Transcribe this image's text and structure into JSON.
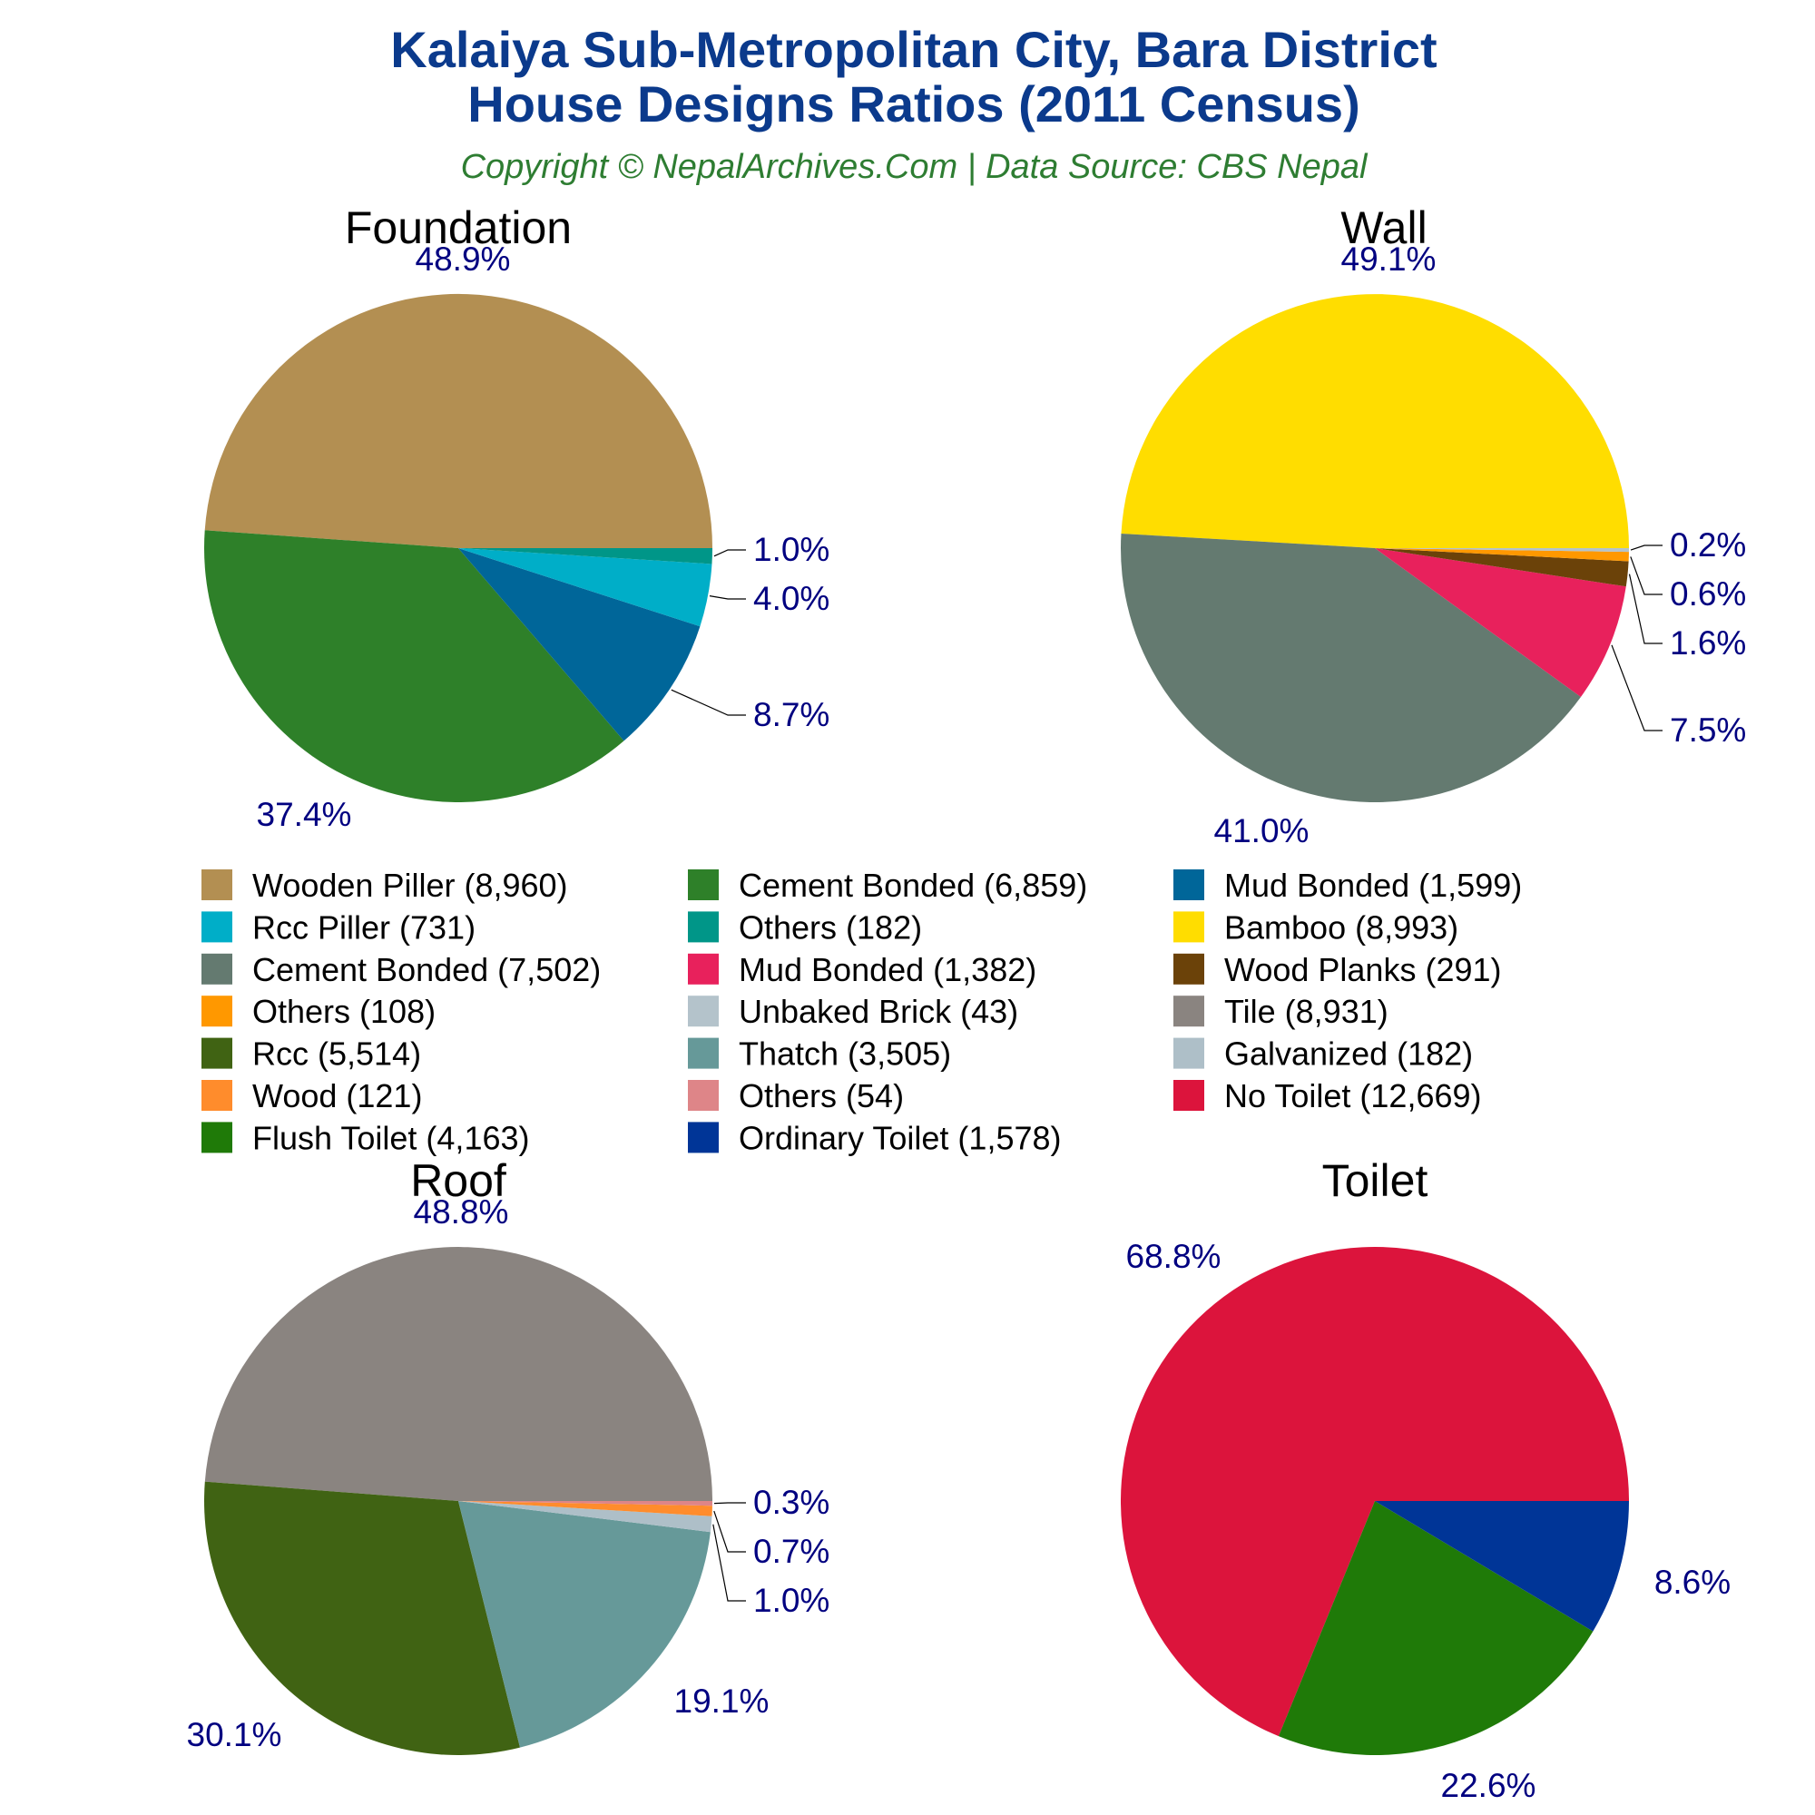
{
  "title_line1": "Kalaiya Sub-Metropolitan City, Bara District",
  "title_line2": "House Designs Ratios (2011 Census)",
  "subtitle": "Copyright © NepalArchives.Com | Data Source: CBS Nepal",
  "chart_data": [
    {
      "type": "pie",
      "title": "Foundation",
      "slices": [
        {
          "label": "Wooden Piller",
          "value": 8960,
          "pct": "48.9%",
          "color": "#b38f52"
        },
        {
          "label": "Cement Bonded",
          "value": 6859,
          "pct": "37.4%",
          "color": "#2e8029"
        },
        {
          "label": "Mud Bonded",
          "value": 1599,
          "pct": "8.7%",
          "color": "#006699"
        },
        {
          "label": "Rcc Piller",
          "value": 731,
          "pct": "4.0%",
          "color": "#00aec8"
        },
        {
          "label": "Others",
          "value": 182,
          "pct": "1.0%",
          "color": "#009688"
        }
      ]
    },
    {
      "type": "pie",
      "title": "Wall",
      "slices": [
        {
          "label": "Bamboo",
          "value": 8993,
          "pct": "49.1%",
          "color": "#ffdd00"
        },
        {
          "label": "Cement Bonded",
          "value": 7502,
          "pct": "41.0%",
          "color": "#647a70"
        },
        {
          "label": "Mud Bonded",
          "value": 1382,
          "pct": "7.5%",
          "color": "#e8215c"
        },
        {
          "label": "Wood Planks",
          "value": 291,
          "pct": "1.6%",
          "color": "#6b4209"
        },
        {
          "label": "Others",
          "value": 108,
          "pct": "0.6%",
          "color": "#ff9800"
        },
        {
          "label": "Unbaked Brick",
          "value": 43,
          "pct": "0.2%",
          "color": "#b4c3cb"
        }
      ]
    },
    {
      "type": "pie",
      "title": "Roof",
      "slices": [
        {
          "label": "Tile",
          "value": 8931,
          "pct": "48.8%",
          "color": "#8a8480"
        },
        {
          "label": "Rcc",
          "value": 5514,
          "pct": "30.1%",
          "color": "#406313"
        },
        {
          "label": "Thatch",
          "value": 3505,
          "pct": "19.1%",
          "color": "#669999"
        },
        {
          "label": "Galvanized",
          "value": 182,
          "pct": "1.0%",
          "color": "#aebfc8"
        },
        {
          "label": "Wood",
          "value": 121,
          "pct": "0.7%",
          "color": "#ff8c2c"
        },
        {
          "label": "Others",
          "value": 54,
          "pct": "0.3%",
          "color": "#de8588"
        }
      ]
    },
    {
      "type": "pie",
      "title": "Toilet",
      "slices": [
        {
          "label": "No Toilet",
          "value": 12669,
          "pct": "68.8%",
          "color": "#dc143c"
        },
        {
          "label": "Flush Toilet",
          "value": 4163,
          "pct": "22.6%",
          "color": "#1f7a08"
        },
        {
          "label": "Ordinary Toilet",
          "value": 1578,
          "pct": "8.6%",
          "color": "#003597"
        }
      ]
    }
  ],
  "legend": [
    {
      "text": "Wooden Piller (8,960)",
      "color": "#b38f52"
    },
    {
      "text": "Cement Bonded (6,859)",
      "color": "#2e8029"
    },
    {
      "text": "Mud Bonded (1,599)",
      "color": "#006699"
    },
    {
      "text": "Rcc Piller (731)",
      "color": "#00aec8"
    },
    {
      "text": "Others (182)",
      "color": "#009688"
    },
    {
      "text": "Bamboo (8,993)",
      "color": "#ffdd00"
    },
    {
      "text": "Cement Bonded (7,502)",
      "color": "#647a70"
    },
    {
      "text": "Mud Bonded (1,382)",
      "color": "#e8215c"
    },
    {
      "text": "Wood Planks (291)",
      "color": "#6b4209"
    },
    {
      "text": "Others (108)",
      "color": "#ff9800"
    },
    {
      "text": "Unbaked Brick (43)",
      "color": "#b4c3cb"
    },
    {
      "text": "Tile (8,931)",
      "color": "#8a8480"
    },
    {
      "text": "Rcc (5,514)",
      "color": "#406313"
    },
    {
      "text": "Thatch (3,505)",
      "color": "#669999"
    },
    {
      "text": "Galvanized (182)",
      "color": "#aebfc8"
    },
    {
      "text": "Wood (121)",
      "color": "#ff8c2c"
    },
    {
      "text": "Others (54)",
      "color": "#de8588"
    },
    {
      "text": "No Toilet (12,669)",
      "color": "#dc143c"
    },
    {
      "text": "Flush Toilet (4,163)",
      "color": "#1f7a08"
    },
    {
      "text": "Ordinary Toilet (1,578)",
      "color": "#003597"
    }
  ]
}
